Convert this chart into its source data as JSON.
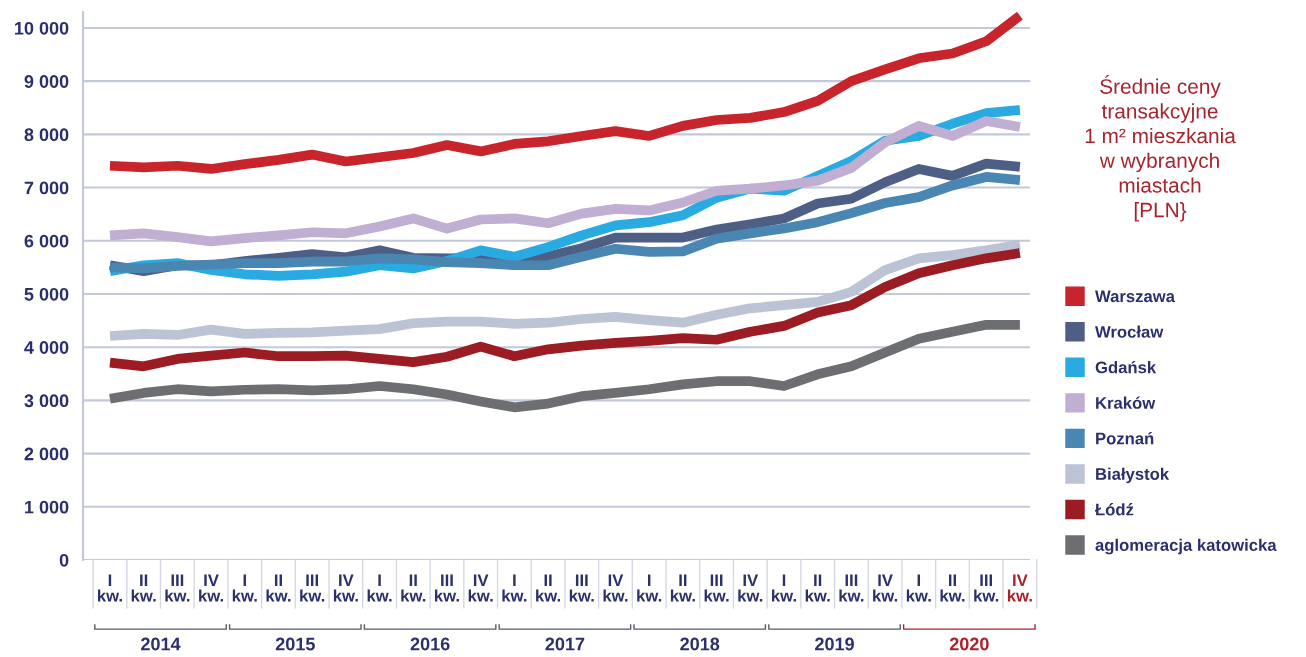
{
  "chart_data": {
    "type": "line",
    "title": "Średnie ceny\ntransakcyjne\n1 m² mieszkania\nw wybranych\nmiastach\n[PLN}",
    "categories": [
      "I\nkw.",
      "II\nkw.",
      "III\nkw.",
      "IV\nkw.",
      "I\nkw.",
      "II\nkw.",
      "III\nkw.",
      "IV\nkw.",
      "I\nkw.",
      "II\nkw.",
      "III\nkw.",
      "IV\nkw.",
      "I\nkw.",
      "II\nkw.",
      "III\nkw.",
      "IV\nkw.",
      "I\nkw.",
      "II\nkw.",
      "III\nkw.",
      "IV\nkw.",
      "I\nkw.",
      "II\nkw.",
      "III\nkw.",
      "IV\nkw.",
      "I\nkw.",
      "II\nkw.",
      "III\nkw.",
      "IV\nkw."
    ],
    "annotations": [
      "2014",
      "2015",
      "2016",
      "2017",
      "2018",
      "2019",
      "2020"
    ],
    "series": [
      {
        "name": "Warszawa",
        "color": "#c8242b",
        "values": [
          7410,
          7380,
          7410,
          7350,
          7440,
          7520,
          7620,
          7490,
          7570,
          7650,
          7800,
          7680,
          7820,
          7870,
          7970,
          8060,
          7970,
          8160,
          8270,
          8310,
          8420,
          8630,
          9000,
          9220,
          9430,
          9520,
          9750,
          10230
        ]
      },
      {
        "name": "Wrocław",
        "color": "#4e5f86",
        "values": [
          5540,
          5430,
          5540,
          5540,
          5620,
          5680,
          5750,
          5690,
          5820,
          5680,
          5670,
          5680,
          5690,
          5710,
          5860,
          6060,
          6060,
          6060,
          6210,
          6310,
          6420,
          6700,
          6790,
          7100,
          7350,
          7220,
          7450,
          7390
        ]
      },
      {
        "name": "Gdańsk",
        "color": "#29abe2",
        "values": [
          5430,
          5540,
          5580,
          5450,
          5370,
          5340,
          5370,
          5420,
          5540,
          5480,
          5620,
          5820,
          5700,
          5880,
          6100,
          6290,
          6350,
          6480,
          6810,
          6980,
          6940,
          7220,
          7500,
          7880,
          7970,
          8200,
          8400,
          8460
        ]
      },
      {
        "name": "Kraków",
        "color": "#c1aed3",
        "values": [
          6100,
          6140,
          6070,
          5990,
          6050,
          6100,
          6160,
          6140,
          6270,
          6420,
          6230,
          6400,
          6420,
          6330,
          6510,
          6600,
          6570,
          6720,
          6940,
          6980,
          7040,
          7130,
          7370,
          7850,
          8160,
          7970,
          8250,
          8140
        ]
      },
      {
        "name": "Poznań",
        "color": "#4a86b2",
        "values": [
          5500,
          5480,
          5530,
          5550,
          5580,
          5580,
          5610,
          5610,
          5670,
          5650,
          5600,
          5580,
          5540,
          5540,
          5700,
          5850,
          5790,
          5800,
          6040,
          6140,
          6230,
          6350,
          6520,
          6710,
          6820,
          7040,
          7200,
          7140
        ]
      },
      {
        "name": "Białystok",
        "color": "#bcc3d5",
        "values": [
          4210,
          4250,
          4230,
          4330,
          4250,
          4270,
          4280,
          4310,
          4340,
          4450,
          4480,
          4480,
          4440,
          4460,
          4530,
          4570,
          4510,
          4460,
          4610,
          4730,
          4790,
          4850,
          5040,
          5450,
          5670,
          5730,
          5820,
          5930
        ]
      },
      {
        "name": "Łódź",
        "color": "#9b1c22",
        "values": [
          3710,
          3640,
          3780,
          3840,
          3900,
          3830,
          3830,
          3840,
          3780,
          3720,
          3820,
          4010,
          3830,
          3960,
          4030,
          4080,
          4120,
          4170,
          4140,
          4290,
          4400,
          4650,
          4790,
          5130,
          5390,
          5540,
          5670,
          5770
        ]
      },
      {
        "name": "aglomeracja katowicka",
        "color": "#6d6e71",
        "values": [
          3030,
          3140,
          3210,
          3170,
          3200,
          3210,
          3190,
          3210,
          3270,
          3210,
          3110,
          2980,
          2870,
          2940,
          3080,
          3140,
          3210,
          3300,
          3360,
          3360,
          3270,
          3490,
          3640,
          3900,
          4160,
          4290,
          4420,
          4420
        ]
      }
    ],
    "ylim": [
      0,
      10300
    ],
    "yticks": [
      0,
      {
        "value": 1000,
        "label": "1 000"
      },
      {
        "value": 2000,
        "label": "2 000"
      },
      {
        "value": 3000,
        "label": "3 000"
      },
      {
        "value": 4000,
        "label": "4 000"
      },
      {
        "value": 5000,
        "label": "5 000"
      },
      {
        "value": 6000,
        "label": "6 000"
      },
      {
        "value": 7000,
        "label": "7 000"
      },
      {
        "value": 8000,
        "label": "8 000"
      },
      {
        "value": 9000,
        "label": "9 000"
      },
      {
        "value": 10000,
        "label": "10 000"
      }
    ],
    "grid": "y",
    "legend": "right",
    "line_style": "solid",
    "marker": "none"
  }
}
